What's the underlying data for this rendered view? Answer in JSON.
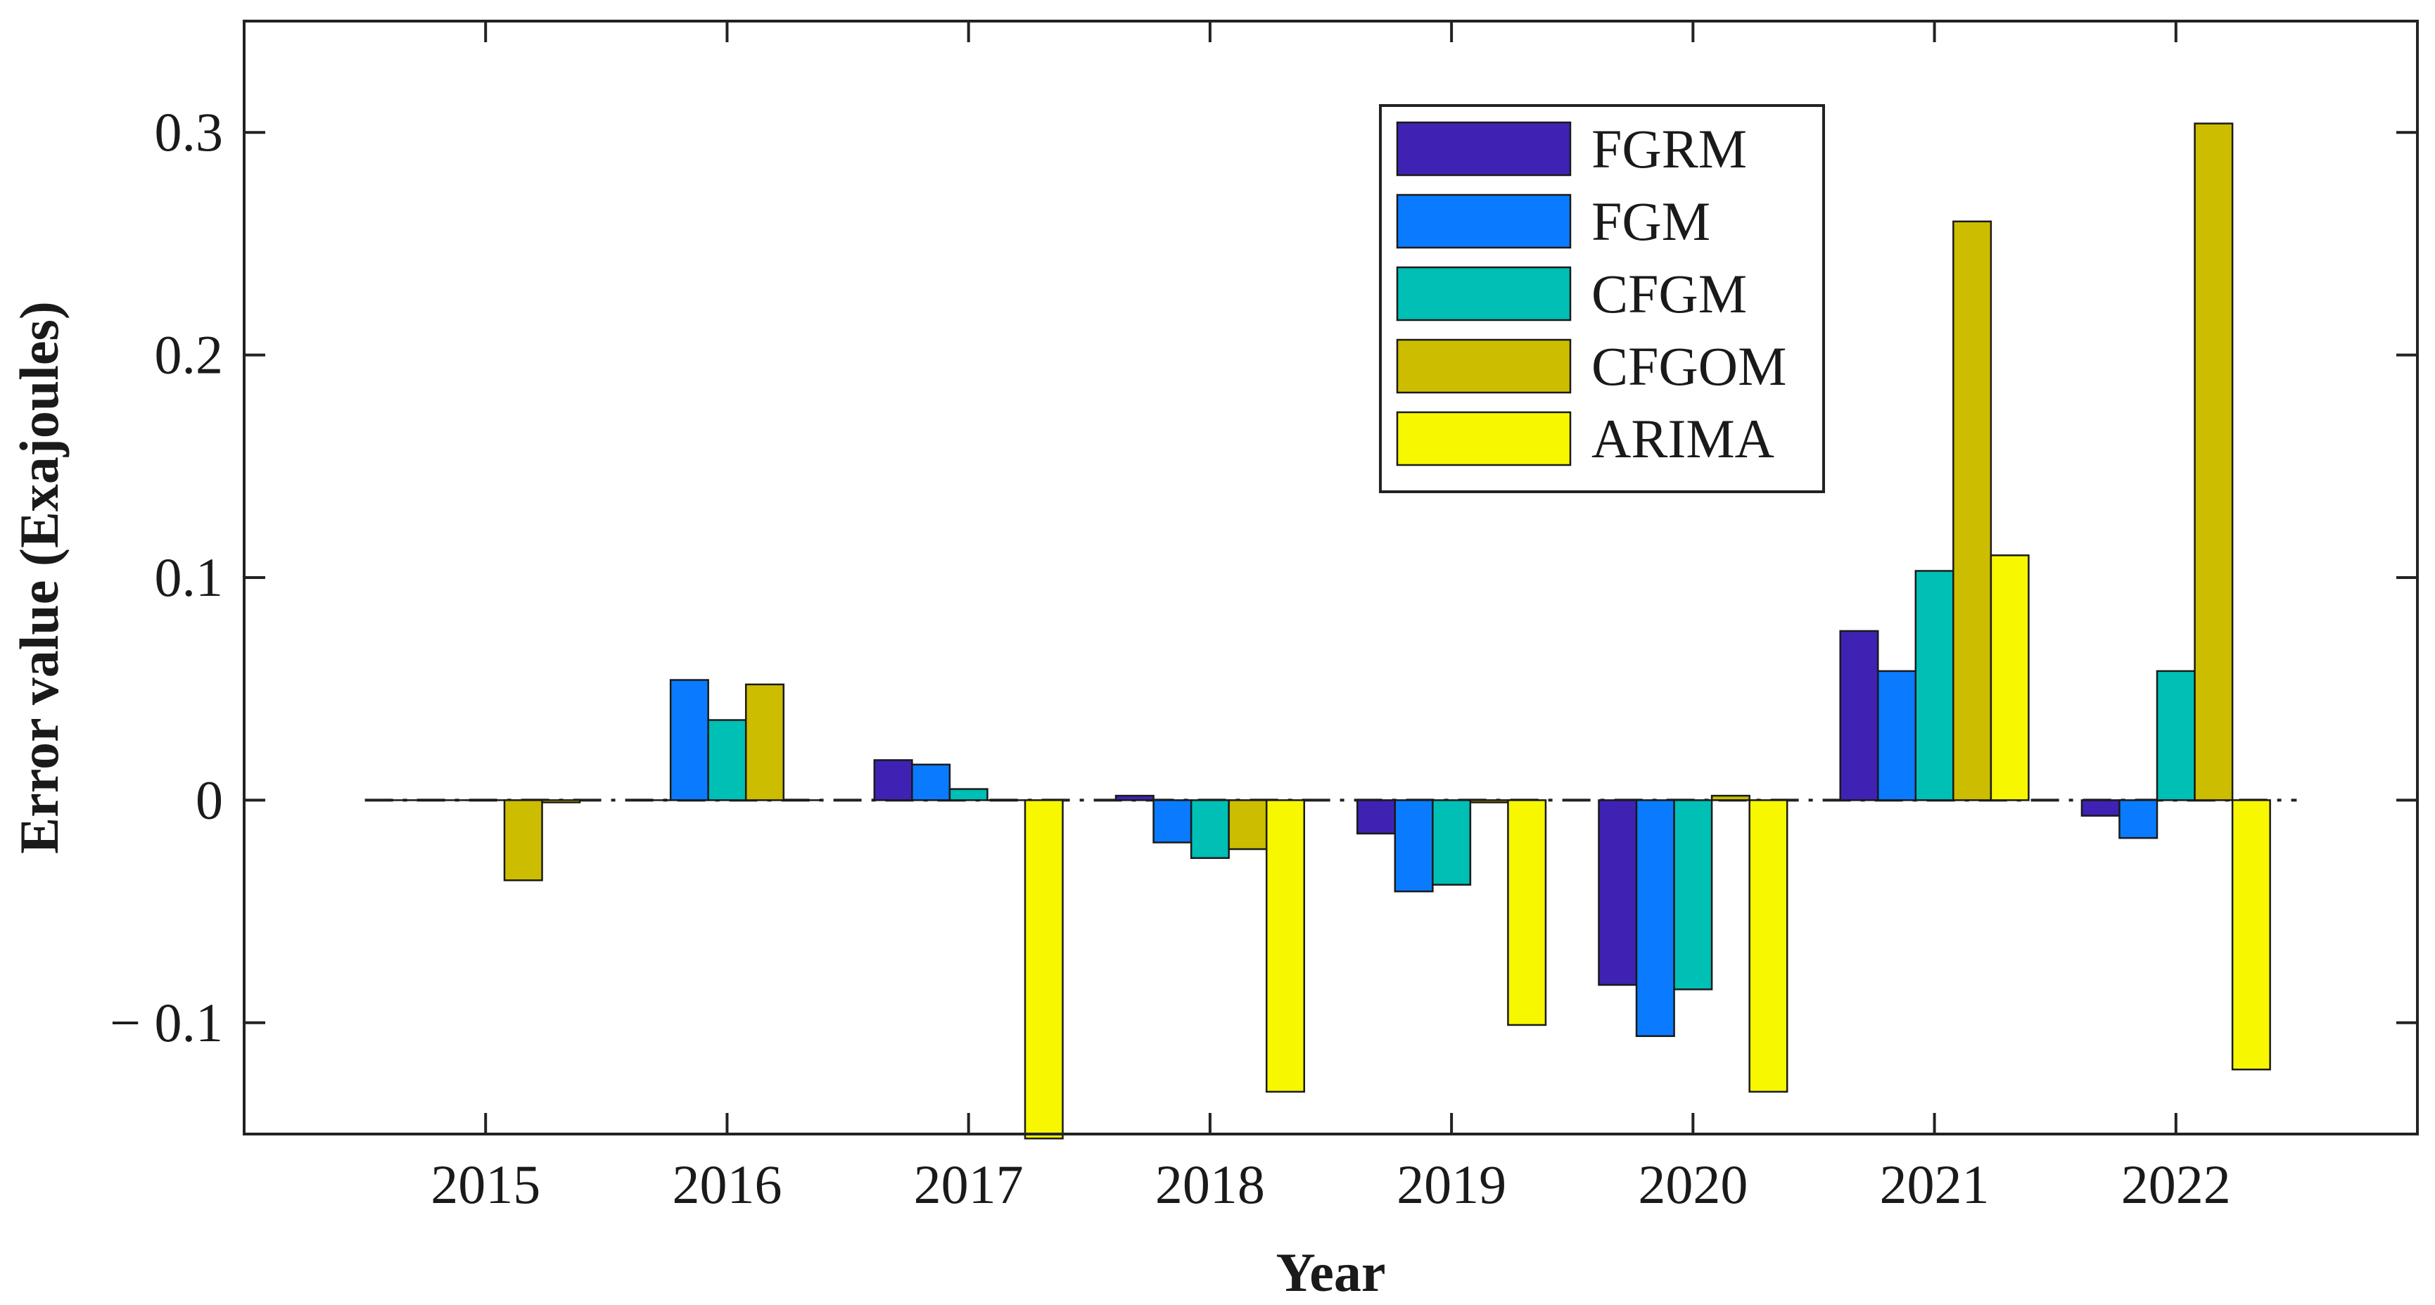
{
  "chart_data": {
    "type": "bar",
    "title": "",
    "xlabel": "Year",
    "ylabel": "Error value (Exajoules)",
    "categories": [
      "2015",
      "2016",
      "2017",
      "2018",
      "2019",
      "2020",
      "2021",
      "2022"
    ],
    "ylim": [
      -0.15,
      0.35
    ],
    "yticks": [
      -0.1,
      0,
      0.1,
      0.2,
      0.3
    ],
    "ytick_labels": [
      "− 0.1",
      "0",
      "0.1",
      "0.2",
      "0.3"
    ],
    "xlim": [
      0,
      9
    ],
    "grid": false,
    "legend_position": "top-right",
    "baseline": "dash-dot line at 0",
    "series": [
      {
        "name": "FGRM",
        "color": "#3f22b3",
        "values": [
          0.0,
          0.0,
          0.018,
          0.002,
          -0.015,
          -0.083,
          0.076,
          -0.007
        ]
      },
      {
        "name": "FGM",
        "color": "#0a7bff",
        "values": [
          0.0,
          0.054,
          0.016,
          -0.019,
          -0.041,
          -0.106,
          0.058,
          -0.017
        ]
      },
      {
        "name": "CFGM",
        "color": "#00bfb5",
        "values": [
          0.0,
          0.036,
          0.005,
          -0.026,
          -0.038,
          -0.085,
          0.103,
          0.058
        ]
      },
      {
        "name": "CFGOM",
        "color": "#cdbd00",
        "values": [
          -0.036,
          0.052,
          0.0,
          -0.022,
          -0.001,
          0.002,
          0.26,
          0.304
        ]
      },
      {
        "name": "ARIMA",
        "color": "#f7f700",
        "values": [
          -0.001,
          0.0,
          -0.152,
          -0.131,
          -0.101,
          -0.131,
          0.11,
          -0.121
        ]
      }
    ]
  }
}
